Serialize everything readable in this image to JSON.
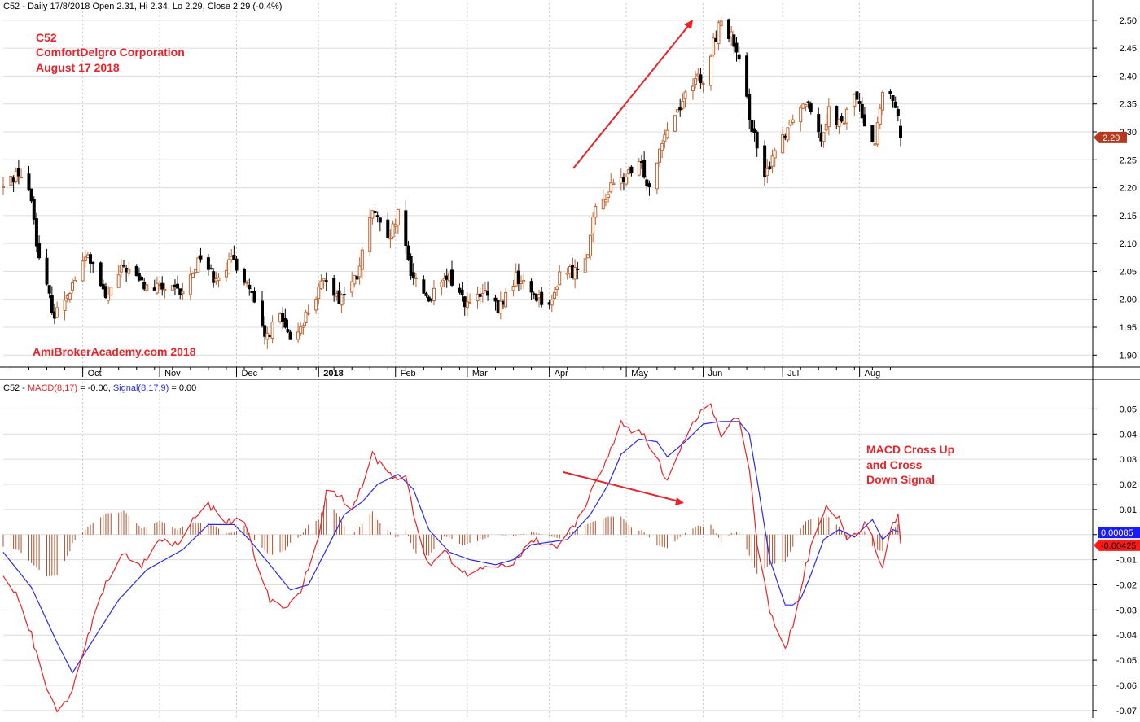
{
  "header": {
    "price_title": "C52 - Daily 17/8/2018 Open 2.31, Hi 2.34, Lo 2.29, Close 2.29 (-0.4%)",
    "macd_prefix": "C52 - ",
    "macd_series": "MACD(8,17)",
    "macd_value": " = -0.00, ",
    "signal_series": "Signal(8,17,9)",
    "signal_value": " = 0.00"
  },
  "annotations": {
    "ticker": "C52",
    "company": "ComfortDelgro Corporation",
    "date": "August 17 2018",
    "watermark": "AmiBrokerAcademy.com  2018",
    "macd_note": [
      "MACD Cross Up",
      "and Cross",
      "Down Signal"
    ]
  },
  "colors": {
    "up_candle": "#c0622e",
    "down_candle": "#000000",
    "macd_line": "#e8242a",
    "signal_line": "#2a2ae8",
    "histogram": "#b0502a",
    "annotation_text": "#e8242a",
    "grid": "#c8c8c8"
  },
  "chart_data": [
    {
      "type": "candlestick",
      "title": "C52 - Daily 17/8/2018 Open 2.31, Hi 2.34, Lo 2.29, Close 2.29 (-0.4%)",
      "ylim": [
        1.88,
        2.51
      ],
      "yticks": [
        1.9,
        1.95,
        2.0,
        2.05,
        2.1,
        2.15,
        2.2,
        2.25,
        2.3,
        2.35,
        2.4,
        2.45,
        2.5
      ],
      "x_tick_labels": [
        "Oct",
        "Nov",
        "Dec",
        "2018",
        "Feb",
        "Mar",
        "Apr",
        "May",
        "Jun",
        "Jul",
        "Aug"
      ],
      "last_price_label": "2.29",
      "close_keypoints": [
        {
          "date": "2017-09-01",
          "close": 2.2
        },
        {
          "date": "2017-09-07",
          "close": 2.23
        },
        {
          "date": "2017-09-12",
          "close": 2.18
        },
        {
          "date": "2017-09-15",
          "close": 2.07
        },
        {
          "date": "2017-09-21",
          "close": 1.97
        },
        {
          "date": "2017-09-27",
          "close": 2.02
        },
        {
          "date": "2017-10-04",
          "close": 2.08
        },
        {
          "date": "2017-10-11",
          "close": 2.0
        },
        {
          "date": "2017-10-18",
          "close": 2.06
        },
        {
          "date": "2017-10-27",
          "close": 2.02
        },
        {
          "date": "2017-11-03",
          "close": 2.02
        },
        {
          "date": "2017-11-10",
          "close": 2.01
        },
        {
          "date": "2017-11-17",
          "close": 2.08
        },
        {
          "date": "2017-11-22",
          "close": 2.04
        },
        {
          "date": "2017-11-30",
          "close": 2.07
        },
        {
          "date": "2017-12-06",
          "close": 2.02
        },
        {
          "date": "2017-12-12",
          "close": 1.93
        },
        {
          "date": "2017-12-18",
          "close": 1.97
        },
        {
          "date": "2017-12-22",
          "close": 1.92
        },
        {
          "date": "2017-12-29",
          "close": 1.98
        },
        {
          "date": "2018-01-05",
          "close": 2.04
        },
        {
          "date": "2018-01-10",
          "close": 2.0
        },
        {
          "date": "2018-01-17",
          "close": 2.04
        },
        {
          "date": "2018-01-23",
          "close": 2.16
        },
        {
          "date": "2018-01-29",
          "close": 2.1
        },
        {
          "date": "2018-02-02",
          "close": 2.15
        },
        {
          "date": "2018-02-07",
          "close": 2.05
        },
        {
          "date": "2018-02-14",
          "close": 2.0
        },
        {
          "date": "2018-02-22",
          "close": 2.04
        },
        {
          "date": "2018-03-01",
          "close": 1.99
        },
        {
          "date": "2018-03-08",
          "close": 2.01
        },
        {
          "date": "2018-03-13",
          "close": 1.98
        },
        {
          "date": "2018-03-20",
          "close": 2.04
        },
        {
          "date": "2018-03-27",
          "close": 2.01
        },
        {
          "date": "2018-04-03",
          "close": 1.99
        },
        {
          "date": "2018-04-06",
          "close": 2.05
        },
        {
          "date": "2018-04-12",
          "close": 2.05
        },
        {
          "date": "2018-04-17",
          "close": 2.09
        },
        {
          "date": "2018-04-20",
          "close": 2.16
        },
        {
          "date": "2018-04-26",
          "close": 2.2
        },
        {
          "date": "2018-05-02",
          "close": 2.22
        },
        {
          "date": "2018-05-08",
          "close": 2.24
        },
        {
          "date": "2018-05-11",
          "close": 2.2
        },
        {
          "date": "2018-05-16",
          "close": 2.29
        },
        {
          "date": "2018-05-22",
          "close": 2.34
        },
        {
          "date": "2018-05-29",
          "close": 2.4
        },
        {
          "date": "2018-06-01",
          "close": 2.38
        },
        {
          "date": "2018-06-05",
          "close": 2.46
        },
        {
          "date": "2018-06-08",
          "close": 2.5
        },
        {
          "date": "2018-06-12",
          "close": 2.47
        },
        {
          "date": "2018-06-15",
          "close": 2.42
        },
        {
          "date": "2018-06-20",
          "close": 2.31
        },
        {
          "date": "2018-06-25",
          "close": 2.21
        },
        {
          "date": "2018-06-28",
          "close": 2.26
        },
        {
          "date": "2018-07-03",
          "close": 2.3
        },
        {
          "date": "2018-07-06",
          "close": 2.33
        },
        {
          "date": "2018-07-12",
          "close": 2.36
        },
        {
          "date": "2018-07-17",
          "close": 2.29
        },
        {
          "date": "2018-07-20",
          "close": 2.34
        },
        {
          "date": "2018-07-25",
          "close": 2.31
        },
        {
          "date": "2018-07-30",
          "close": 2.37
        },
        {
          "date": "2018-08-02",
          "close": 2.33
        },
        {
          "date": "2018-08-07",
          "close": 2.28
        },
        {
          "date": "2018-08-10",
          "close": 2.37
        },
        {
          "date": "2018-08-15",
          "close": 2.35
        },
        {
          "date": "2018-08-17",
          "close": 2.29
        }
      ]
    },
    {
      "type": "line",
      "title": "C52 - MACD(8,17) = -0.00, Signal(8,17,9) = 0.00",
      "ylim": [
        -0.072,
        0.055
      ],
      "yticks": [
        0.05,
        0.04,
        0.03,
        0.02,
        0.01,
        0.0,
        -0.01,
        -0.02,
        -0.03,
        -0.04,
        -0.05,
        -0.06,
        -0.07
      ],
      "ytick_labels": [
        "0.05",
        "0.04",
        "0.03",
        "0.02",
        "0.01",
        "",
        "-0.01",
        "-0.02",
        "-0.03",
        "-0.04",
        "-0.05",
        "-0.06",
        "-0.07"
      ],
      "value_labels": {
        "signal": "0.00085",
        "macd": "-0.00425"
      },
      "series": [
        {
          "name": "MACD(8,17)",
          "points": [
            {
              "date": "2017-09-01",
              "value": -0.015
            },
            {
              "date": "2017-09-07",
              "value": -0.025
            },
            {
              "date": "2017-09-12",
              "value": -0.04
            },
            {
              "date": "2017-09-18",
              "value": -0.062
            },
            {
              "date": "2017-09-22",
              "value": -0.07
            },
            {
              "date": "2017-09-27",
              "value": -0.064
            },
            {
              "date": "2017-10-04",
              "value": -0.04
            },
            {
              "date": "2017-10-11",
              "value": -0.02
            },
            {
              "date": "2017-10-18",
              "value": -0.008
            },
            {
              "date": "2017-10-25",
              "value": -0.012
            },
            {
              "date": "2017-11-01",
              "value": -0.002
            },
            {
              "date": "2017-11-08",
              "value": -0.004
            },
            {
              "date": "2017-11-14",
              "value": 0.006
            },
            {
              "date": "2017-11-20",
              "value": 0.012
            },
            {
              "date": "2017-11-27",
              "value": 0.005
            },
            {
              "date": "2017-12-04",
              "value": 0.006
            },
            {
              "date": "2017-12-08",
              "value": -0.008
            },
            {
              "date": "2017-12-14",
              "value": -0.026
            },
            {
              "date": "2017-12-20",
              "value": -0.03
            },
            {
              "date": "2017-12-26",
              "value": -0.022
            },
            {
              "date": "2018-01-02",
              "value": -0.002
            },
            {
              "date": "2018-01-05",
              "value": 0.018
            },
            {
              "date": "2018-01-10",
              "value": 0.016
            },
            {
              "date": "2018-01-15",
              "value": 0.01
            },
            {
              "date": "2018-01-19",
              "value": 0.02
            },
            {
              "date": "2018-01-23",
              "value": 0.033
            },
            {
              "date": "2018-01-26",
              "value": 0.028
            },
            {
              "date": "2018-02-01",
              "value": 0.022
            },
            {
              "date": "2018-02-05",
              "value": 0.024
            },
            {
              "date": "2018-02-09",
              "value": 0.003
            },
            {
              "date": "2018-02-14",
              "value": -0.012
            },
            {
              "date": "2018-02-20",
              "value": -0.006
            },
            {
              "date": "2018-02-27",
              "value": -0.016
            },
            {
              "date": "2018-03-05",
              "value": -0.015
            },
            {
              "date": "2018-03-12",
              "value": -0.012
            },
            {
              "date": "2018-03-19",
              "value": -0.011
            },
            {
              "date": "2018-03-26",
              "value": -0.002
            },
            {
              "date": "2018-04-02",
              "value": -0.004
            },
            {
              "date": "2018-04-06",
              "value": -0.005
            },
            {
              "date": "2018-04-12",
              "value": 0.004
            },
            {
              "date": "2018-04-18",
              "value": 0.016
            },
            {
              "date": "2018-04-25",
              "value": 0.032
            },
            {
              "date": "2018-04-30",
              "value": 0.044
            },
            {
              "date": "2018-05-04",
              "value": 0.04
            },
            {
              "date": "2018-05-08",
              "value": 0.041
            },
            {
              "date": "2018-05-14",
              "value": 0.03
            },
            {
              "date": "2018-05-18",
              "value": 0.022
            },
            {
              "date": "2018-05-24",
              "value": 0.036
            },
            {
              "date": "2018-05-30",
              "value": 0.048
            },
            {
              "date": "2018-06-04",
              "value": 0.051
            },
            {
              "date": "2018-06-08",
              "value": 0.04
            },
            {
              "date": "2018-06-12",
              "value": 0.046
            },
            {
              "date": "2018-06-15",
              "value": 0.047
            },
            {
              "date": "2018-06-19",
              "value": 0.026
            },
            {
              "date": "2018-06-22",
              "value": -0.004
            },
            {
              "date": "2018-06-27",
              "value": -0.03
            },
            {
              "date": "2018-07-03",
              "value": -0.046
            },
            {
              "date": "2018-07-06",
              "value": -0.036
            },
            {
              "date": "2018-07-11",
              "value": -0.012
            },
            {
              "date": "2018-07-16",
              "value": 0.004
            },
            {
              "date": "2018-07-19",
              "value": 0.012
            },
            {
              "date": "2018-07-24",
              "value": 0.007
            },
            {
              "date": "2018-07-27",
              "value": -0.003
            },
            {
              "date": "2018-08-01",
              "value": 0.002
            },
            {
              "date": "2018-08-04",
              "value": 0.007
            },
            {
              "date": "2018-08-07",
              "value": -0.006
            },
            {
              "date": "2018-08-10",
              "value": -0.013
            },
            {
              "date": "2018-08-13",
              "value": 0.003
            },
            {
              "date": "2018-08-16",
              "value": 0.008
            },
            {
              "date": "2018-08-17",
              "value": -0.004
            }
          ]
        },
        {
          "name": "Signal(8,17,9)",
          "points": [
            {
              "date": "2017-09-01",
              "value": -0.007
            },
            {
              "date": "2017-09-12",
              "value": -0.021
            },
            {
              "date": "2017-09-22",
              "value": -0.043
            },
            {
              "date": "2017-09-28",
              "value": -0.055
            },
            {
              "date": "2017-10-06",
              "value": -0.042
            },
            {
              "date": "2017-10-16",
              "value": -0.026
            },
            {
              "date": "2017-10-27",
              "value": -0.014
            },
            {
              "date": "2017-11-10",
              "value": -0.006
            },
            {
              "date": "2017-11-20",
              "value": 0.004
            },
            {
              "date": "2017-11-30",
              "value": 0.004
            },
            {
              "date": "2017-12-06",
              "value": -0.002
            },
            {
              "date": "2017-12-14",
              "value": -0.012
            },
            {
              "date": "2017-12-22",
              "value": -0.022
            },
            {
              "date": "2017-12-29",
              "value": -0.02
            },
            {
              "date": "2018-01-05",
              "value": -0.006
            },
            {
              "date": "2018-01-12",
              "value": 0.008
            },
            {
              "date": "2018-01-19",
              "value": 0.013
            },
            {
              "date": "2018-01-25",
              "value": 0.02
            },
            {
              "date": "2018-02-02",
              "value": 0.024
            },
            {
              "date": "2018-02-08",
              "value": 0.018
            },
            {
              "date": "2018-02-14",
              "value": 0.002
            },
            {
              "date": "2018-02-22",
              "value": -0.007
            },
            {
              "date": "2018-03-02",
              "value": -0.01
            },
            {
              "date": "2018-03-12",
              "value": -0.012
            },
            {
              "date": "2018-03-19",
              "value": -0.01
            },
            {
              "date": "2018-03-26",
              "value": -0.004
            },
            {
              "date": "2018-04-02",
              "value": -0.003
            },
            {
              "date": "2018-04-09",
              "value": -0.002
            },
            {
              "date": "2018-04-18",
              "value": 0.008
            },
            {
              "date": "2018-04-25",
              "value": 0.02
            },
            {
              "date": "2018-04-30",
              "value": 0.032
            },
            {
              "date": "2018-05-07",
              "value": 0.038
            },
            {
              "date": "2018-05-14",
              "value": 0.037
            },
            {
              "date": "2018-05-18",
              "value": 0.031
            },
            {
              "date": "2018-05-25",
              "value": 0.037
            },
            {
              "date": "2018-06-01",
              "value": 0.044
            },
            {
              "date": "2018-06-08",
              "value": 0.045
            },
            {
              "date": "2018-06-15",
              "value": 0.045
            },
            {
              "date": "2018-06-19",
              "value": 0.04
            },
            {
              "date": "2018-06-22",
              "value": 0.022
            },
            {
              "date": "2018-06-27",
              "value": -0.01
            },
            {
              "date": "2018-07-03",
              "value": -0.028
            },
            {
              "date": "2018-07-08",
              "value": -0.028
            },
            {
              "date": "2018-07-13",
              "value": -0.016
            },
            {
              "date": "2018-07-18",
              "value": -0.002
            },
            {
              "date": "2018-07-24",
              "value": 0.002
            },
            {
              "date": "2018-07-30",
              "value": -0.001
            },
            {
              "date": "2018-08-03",
              "value": 0.003
            },
            {
              "date": "2018-08-06",
              "value": 0.006
            },
            {
              "date": "2018-08-10",
              "value": -0.002
            },
            {
              "date": "2018-08-14",
              "value": 0.002
            },
            {
              "date": "2018-08-17",
              "value": 0.00085
            }
          ]
        }
      ]
    }
  ]
}
